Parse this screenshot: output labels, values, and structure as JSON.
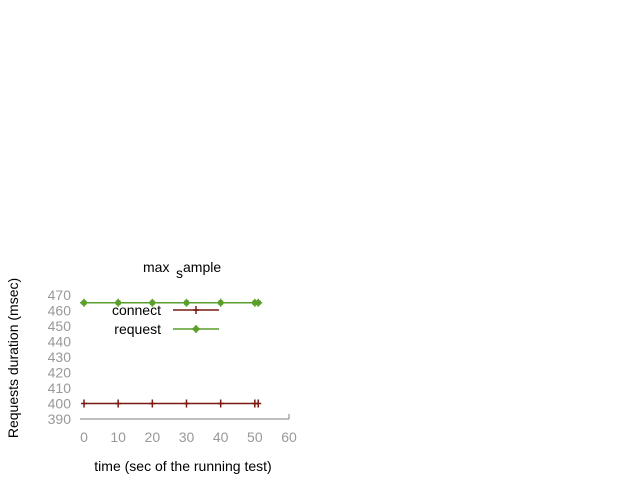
{
  "chart_data": {
    "type": "line",
    "title": {
      "main": "max",
      "sub": "s",
      "rest": "ample"
    },
    "xlabel": "time (sec of the running test)",
    "ylabel": "Requests duration (msec)",
    "xlim": [
      0,
      60
    ],
    "ylim": [
      390,
      470
    ],
    "xticks": [
      0,
      10,
      20,
      30,
      40,
      50,
      60
    ],
    "yticks": [
      390,
      400,
      410,
      420,
      430,
      440,
      450,
      460,
      470
    ],
    "grid": false,
    "legend_position": "top-left",
    "series": [
      {
        "name": "connect",
        "color": "#7a1a12",
        "marker": "plus",
        "x": [
          0,
          10,
          20,
          30,
          40,
          50,
          51
        ],
        "y": [
          400,
          400,
          400,
          400,
          400,
          400,
          400
        ]
      },
      {
        "name": "request",
        "color": "#5a9e2c",
        "marker": "star",
        "x": [
          0,
          10,
          20,
          30,
          40,
          50,
          51
        ],
        "y": [
          465,
          465,
          465,
          465,
          465,
          465,
          465
        ]
      }
    ]
  }
}
